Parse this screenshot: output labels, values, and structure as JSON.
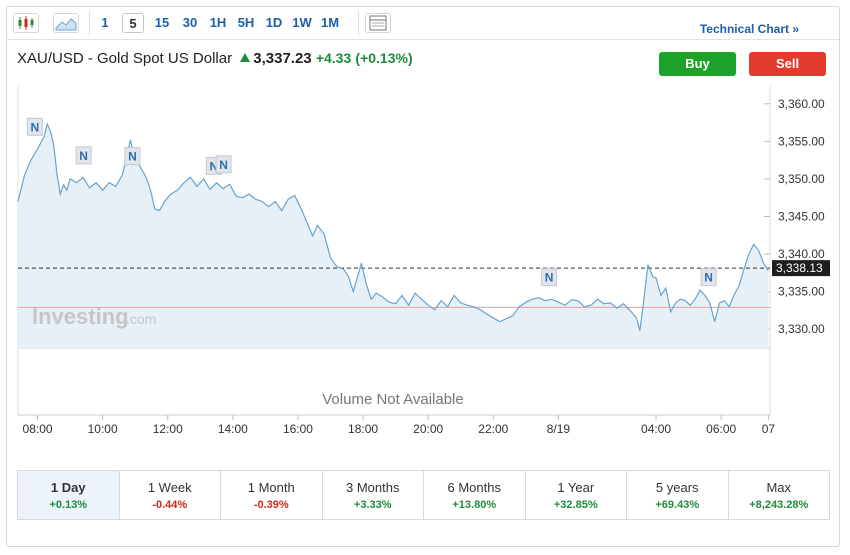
{
  "toolbar": {
    "intervals": [
      "1",
      "5",
      "15",
      "30",
      "1H",
      "5H",
      "1D",
      "1W",
      "1M"
    ],
    "active_interval": "5",
    "technical_chart_label": "Technical Chart »"
  },
  "header": {
    "symbol": "XAU/USD - Gold Spot US Dollar",
    "price": "3,337.23",
    "change": "+4.33",
    "change_pct": "(+0.13%)"
  },
  "actions": {
    "buy_label": "Buy",
    "sell_label": "Sell"
  },
  "watermark": {
    "brand": "Investing",
    "suffix": ".com"
  },
  "volume_text": "Volume Not Available",
  "colors": {
    "line": "#6aa3cf",
    "area": "#e7eff7",
    "positive": "#1c8c3c",
    "negative": "#d0261e",
    "buy": "#1ea32a",
    "sell": "#e23b2e",
    "prev_close_line": "#e8a0a0"
  },
  "periods": [
    {
      "label": "1 Day",
      "change": "+0.13%",
      "dir": "pos",
      "active": true
    },
    {
      "label": "1 Week",
      "change": "-0.44%",
      "dir": "neg"
    },
    {
      "label": "1 Month",
      "change": "-0.39%",
      "dir": "neg"
    },
    {
      "label": "3 Months",
      "change": "+3.33%",
      "dir": "pos"
    },
    {
      "label": "6 Months",
      "change": "+13.80%",
      "dir": "pos"
    },
    {
      "label": "1 Year",
      "change": "+32.85%",
      "dir": "pos"
    },
    {
      "label": "5 years",
      "change": "+69.43%",
      "dir": "pos"
    },
    {
      "label": "Max",
      "change": "+8,243.28%",
      "dir": "pos"
    }
  ],
  "chart_data": {
    "type": "area",
    "title": "",
    "xlabel": "",
    "ylabel": "",
    "x_ticks": [
      "08:00",
      "10:00",
      "12:00",
      "14:00",
      "16:00",
      "18:00",
      "20:00",
      "22:00",
      "8/19",
      "04:00",
      "06:00",
      "07"
    ],
    "y_ticks": [
      "3,360.00",
      "3,355.00",
      "3,350.00",
      "3,345.00",
      "3,340.00",
      "3,335.00",
      "3,330.00"
    ],
    "ylim": [
      3327.5,
      3362.5
    ],
    "current_price_label": "3,338.13",
    "current_price": 3338.13,
    "prev_close": 3332.9,
    "news_markers": [
      {
        "label": "N",
        "t": 0.5,
        "price": 3357.0
      },
      {
        "label": "N",
        "t": 2.0,
        "price": 3353.2
      },
      {
        "label": "N",
        "t": 3.5,
        "price": 3353.1
      },
      {
        "label": "N",
        "t": 6.0,
        "price": 3351.8
      },
      {
        "label": "N",
        "t": 6.3,
        "price": 3352.0
      },
      {
        "label": "N",
        "t": 16.3,
        "price": 3337.0
      },
      {
        "label": "N",
        "t": 21.2,
        "price": 3337.0
      }
    ],
    "series": [
      {
        "values": [
          [
            0.0,
            3347.0
          ],
          [
            0.2,
            3350.5
          ],
          [
            0.4,
            3352.5
          ],
          [
            0.6,
            3354.0
          ],
          [
            0.8,
            3355.6
          ],
          [
            0.9,
            3357.3
          ],
          [
            1.0,
            3356.3
          ],
          [
            1.1,
            3354.4
          ],
          [
            1.2,
            3350.5
          ],
          [
            1.3,
            3348.0
          ],
          [
            1.4,
            3349.2
          ],
          [
            1.5,
            3348.5
          ],
          [
            1.6,
            3350.0
          ],
          [
            1.8,
            3349.5
          ],
          [
            2.0,
            3350.2
          ],
          [
            2.2,
            3348.8
          ],
          [
            2.4,
            3349.5
          ],
          [
            2.6,
            3348.5
          ],
          [
            2.8,
            3349.5
          ],
          [
            3.0,
            3349.0
          ],
          [
            3.2,
            3350.5
          ],
          [
            3.35,
            3353.0
          ],
          [
            3.45,
            3355.2
          ],
          [
            3.55,
            3353.5
          ],
          [
            3.7,
            3352.0
          ],
          [
            3.9,
            3350.5
          ],
          [
            4.0,
            3349.5
          ],
          [
            4.1,
            3348.0
          ],
          [
            4.2,
            3346.0
          ],
          [
            4.35,
            3345.8
          ],
          [
            4.5,
            3347.0
          ],
          [
            4.7,
            3348.0
          ],
          [
            4.9,
            3348.5
          ],
          [
            5.1,
            3349.5
          ],
          [
            5.3,
            3350.2
          ],
          [
            5.5,
            3349.0
          ],
          [
            5.7,
            3350.0
          ],
          [
            5.9,
            3348.6
          ],
          [
            6.1,
            3349.5
          ],
          [
            6.3,
            3348.7
          ],
          [
            6.5,
            3349.3
          ],
          [
            6.7,
            3347.7
          ],
          [
            6.9,
            3347.5
          ],
          [
            7.1,
            3348.0
          ],
          [
            7.3,
            3347.3
          ],
          [
            7.5,
            3347.0
          ],
          [
            7.7,
            3346.3
          ],
          [
            7.9,
            3347.0
          ],
          [
            8.1,
            3345.8
          ],
          [
            8.3,
            3347.3
          ],
          [
            8.5,
            3347.8
          ],
          [
            8.7,
            3346.0
          ],
          [
            8.9,
            3344.0
          ],
          [
            9.05,
            3342.4
          ],
          [
            9.2,
            3343.8
          ],
          [
            9.4,
            3342.7
          ],
          [
            9.6,
            3339.5
          ],
          [
            9.8,
            3338.3
          ],
          [
            10.0,
            3338.0
          ],
          [
            10.15,
            3337.0
          ],
          [
            10.3,
            3335.0
          ],
          [
            10.45,
            3337.3
          ],
          [
            10.55,
            3338.8
          ],
          [
            10.7,
            3336.0
          ],
          [
            10.85,
            3334.0
          ],
          [
            11.0,
            3334.8
          ],
          [
            11.2,
            3334.3
          ],
          [
            11.4,
            3333.6
          ],
          [
            11.6,
            3333.4
          ],
          [
            11.8,
            3334.5
          ],
          [
            12.0,
            3333.2
          ],
          [
            12.2,
            3334.8
          ],
          [
            12.4,
            3334.0
          ],
          [
            12.6,
            3333.2
          ],
          [
            12.8,
            3332.6
          ],
          [
            13.0,
            3333.8
          ],
          [
            13.2,
            3333.0
          ],
          [
            13.4,
            3334.5
          ],
          [
            13.6,
            3333.5
          ],
          [
            13.8,
            3333.2
          ],
          [
            14.0,
            3333.0
          ],
          [
            14.2,
            3332.6
          ],
          [
            14.4,
            3332.0
          ],
          [
            14.6,
            3331.5
          ],
          [
            14.8,
            3331.0
          ],
          [
            15.0,
            3331.4
          ],
          [
            15.2,
            3331.8
          ],
          [
            15.4,
            3333.0
          ],
          [
            15.6,
            3333.6
          ],
          [
            15.8,
            3334.0
          ],
          [
            16.0,
            3334.2
          ],
          [
            16.2,
            3333.8
          ],
          [
            16.4,
            3334.0
          ],
          [
            16.6,
            3333.6
          ],
          [
            16.8,
            3333.2
          ],
          [
            17.0,
            3333.9
          ],
          [
            17.2,
            3333.8
          ],
          [
            17.4,
            3333.0
          ],
          [
            17.6,
            3333.2
          ],
          [
            17.8,
            3334.0
          ],
          [
            18.0,
            3333.4
          ],
          [
            18.2,
            3333.5
          ],
          [
            18.4,
            3332.8
          ],
          [
            18.6,
            3333.4
          ],
          [
            18.8,
            3332.5
          ],
          [
            19.0,
            3331.5
          ],
          [
            19.1,
            3329.8
          ],
          [
            19.2,
            3333.0
          ],
          [
            19.35,
            3338.6
          ],
          [
            19.5,
            3337.0
          ],
          [
            19.6,
            3336.8
          ],
          [
            19.75,
            3334.5
          ],
          [
            19.9,
            3335.5
          ],
          [
            20.05,
            3332.3
          ],
          [
            20.2,
            3333.5
          ],
          [
            20.35,
            3334.0
          ],
          [
            20.5,
            3333.8
          ],
          [
            20.65,
            3333.2
          ],
          [
            20.8,
            3334.0
          ],
          [
            20.95,
            3335.2
          ],
          [
            21.1,
            3334.5
          ],
          [
            21.25,
            3333.5
          ],
          [
            21.4,
            3331.0
          ],
          [
            21.55,
            3333.5
          ],
          [
            21.7,
            3333.8
          ],
          [
            21.85,
            3333.0
          ],
          [
            22.0,
            3334.6
          ],
          [
            22.15,
            3335.8
          ],
          [
            22.3,
            3338.0
          ],
          [
            22.45,
            3340.0
          ],
          [
            22.6,
            3341.3
          ],
          [
            22.75,
            3340.5
          ],
          [
            22.9,
            3338.8
          ],
          [
            23.05,
            3337.8
          ]
        ]
      }
    ]
  }
}
